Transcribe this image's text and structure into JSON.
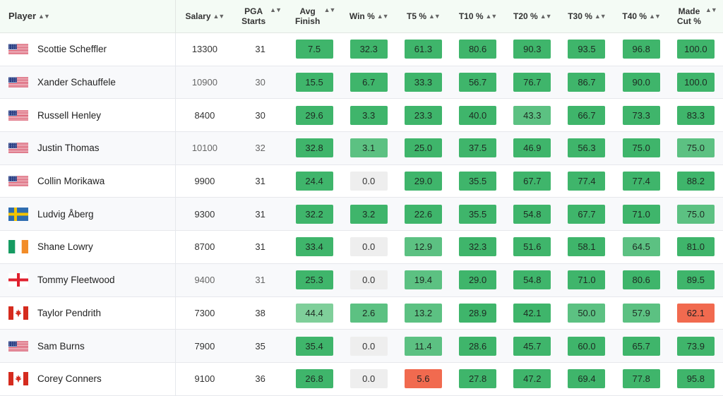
{
  "columns": [
    {
      "key": "player",
      "label": "Player",
      "sortable": true
    },
    {
      "key": "salary",
      "label": "Salary",
      "sortable": true
    },
    {
      "key": "starts",
      "label": "PGA Starts",
      "sortable": true
    },
    {
      "key": "avg_finish",
      "label": "Avg Finish",
      "sortable": true
    },
    {
      "key": "win",
      "label": "Win %",
      "sortable": true
    },
    {
      "key": "t5",
      "label": "T5 %",
      "sortable": true
    },
    {
      "key": "t10",
      "label": "T10 %",
      "sortable": true
    },
    {
      "key": "t20",
      "label": "T20 %",
      "sortable": true
    },
    {
      "key": "t30",
      "label": "T30 %",
      "sortable": true
    },
    {
      "key": "t40",
      "label": "T40 %",
      "sortable": true
    },
    {
      "key": "made_cut",
      "label": "Made Cut %",
      "sortable": true
    }
  ],
  "rows": [
    {
      "name": "Scottie Scheffler",
      "flag": "usa",
      "salary": "13300",
      "starts": "31",
      "stats": [
        "7.5",
        "32.3",
        "61.3",
        "80.6",
        "90.3",
        "93.5",
        "96.8",
        "100.0"
      ]
    },
    {
      "name": "Xander Schauffele",
      "flag": "usa",
      "salary": "10900",
      "starts": "30",
      "stats": [
        "15.5",
        "6.7",
        "33.3",
        "56.7",
        "76.7",
        "86.7",
        "90.0",
        "100.0"
      ]
    },
    {
      "name": "Russell Henley",
      "flag": "usa",
      "salary": "8400",
      "starts": "30",
      "stats": [
        "29.6",
        "3.3",
        "23.3",
        "40.0",
        "43.3",
        "66.7",
        "73.3",
        "83.3"
      ]
    },
    {
      "name": "Justin Thomas",
      "flag": "usa",
      "salary": "10100",
      "starts": "32",
      "stats": [
        "32.8",
        "3.1",
        "25.0",
        "37.5",
        "46.9",
        "56.3",
        "75.0",
        "75.0"
      ]
    },
    {
      "name": "Collin Morikawa",
      "flag": "usa",
      "salary": "9900",
      "starts": "31",
      "stats": [
        "24.4",
        "0.0",
        "29.0",
        "35.5",
        "67.7",
        "77.4",
        "77.4",
        "88.2"
      ]
    },
    {
      "name": "Ludvig Åberg",
      "flag": "sweden",
      "salary": "9300",
      "starts": "31",
      "stats": [
        "32.2",
        "3.2",
        "22.6",
        "35.5",
        "54.8",
        "67.7",
        "71.0",
        "75.0"
      ]
    },
    {
      "name": "Shane Lowry",
      "flag": "ireland",
      "salary": "8700",
      "starts": "31",
      "stats": [
        "33.4",
        "0.0",
        "12.9",
        "32.3",
        "51.6",
        "58.1",
        "64.5",
        "81.0"
      ]
    },
    {
      "name": "Tommy Fleetwood",
      "flag": "england",
      "salary": "9400",
      "starts": "31",
      "stats": [
        "25.3",
        "0.0",
        "19.4",
        "29.0",
        "54.8",
        "71.0",
        "80.6",
        "89.5"
      ]
    },
    {
      "name": "Taylor Pendrith",
      "flag": "canada",
      "salary": "7300",
      "starts": "38",
      "stats": [
        "44.4",
        "2.6",
        "13.2",
        "28.9",
        "42.1",
        "50.0",
        "57.9",
        "62.1"
      ]
    },
    {
      "name": "Sam Burns",
      "flag": "usa",
      "salary": "7900",
      "starts": "35",
      "stats": [
        "35.4",
        "0.0",
        "11.4",
        "28.6",
        "45.7",
        "60.0",
        "65.7",
        "73.9"
      ]
    },
    {
      "name": "Corey Conners",
      "flag": "canada",
      "salary": "9100",
      "starts": "36",
      "stats": [
        "26.8",
        "0.0",
        "5.6",
        "27.8",
        "47.2",
        "69.4",
        "77.8",
        "95.8"
      ]
    }
  ],
  "cell_colors": {
    "strong_green": "#3fb56b",
    "mid_green": "#5cc182",
    "light_green": "#7fcf9a",
    "neutral": "#eeeeee",
    "red": "#f16a4f"
  },
  "cell_tiers": [
    [
      "g1",
      "g1",
      "g1",
      "g1",
      "g1",
      "g1",
      "g1",
      "g1"
    ],
    [
      "g1",
      "g1",
      "g1",
      "g1",
      "g1",
      "g1",
      "g1",
      "g1"
    ],
    [
      "g1",
      "g1",
      "g1",
      "g1",
      "g2",
      "g1",
      "g1",
      "g1"
    ],
    [
      "g1",
      "g2",
      "g1",
      "g1",
      "g1",
      "g1",
      "g1",
      "g2"
    ],
    [
      "g1",
      "z",
      "g1",
      "g1",
      "g1",
      "g1",
      "g1",
      "g1"
    ],
    [
      "g1",
      "g1",
      "g1",
      "g1",
      "g1",
      "g1",
      "g1",
      "g2"
    ],
    [
      "g1",
      "z",
      "g2",
      "g1",
      "g1",
      "g1",
      "g2",
      "g1"
    ],
    [
      "g1",
      "z",
      "g2",
      "g1",
      "g1",
      "g1",
      "g1",
      "g1"
    ],
    [
      "g3",
      "g2",
      "g2",
      "g1",
      "g1",
      "g2",
      "g2",
      "r"
    ],
    [
      "g1",
      "z",
      "g2",
      "g1",
      "g1",
      "g1",
      "g1",
      "g1"
    ],
    [
      "g1",
      "z",
      "r",
      "g1",
      "g1",
      "g1",
      "g1",
      "g1"
    ]
  ],
  "dim_salary_rows": [
    1,
    3,
    7
  ]
}
